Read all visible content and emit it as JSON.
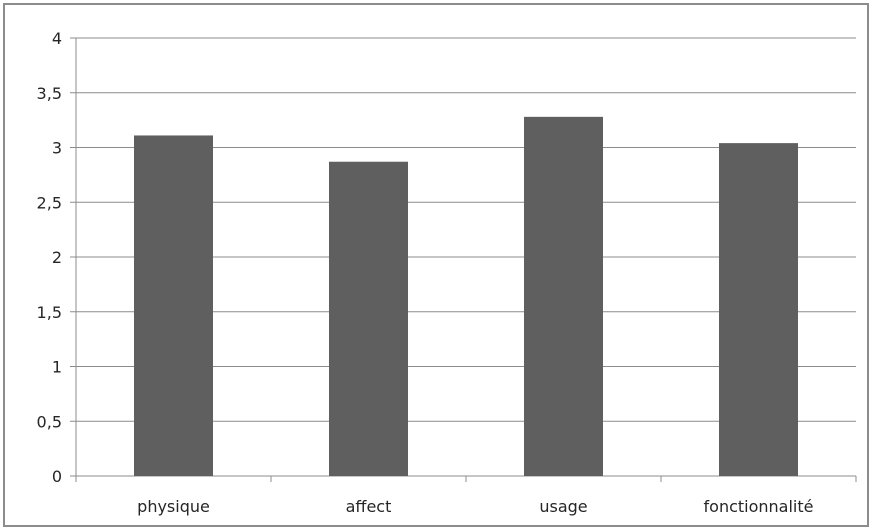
{
  "chart_data": {
    "type": "bar",
    "title": "",
    "xlabel": "",
    "ylabel": "",
    "categories": [
      "physique",
      "affect",
      "usage",
      "fonctionnalité"
    ],
    "values": [
      3.11,
      2.87,
      3.28,
      3.04
    ],
    "ylim": [
      0,
      4
    ],
    "yticks": [
      0,
      0.5,
      1,
      1.5,
      2,
      2.5,
      3,
      3.5,
      4
    ],
    "ytick_labels": [
      "0",
      "0,5",
      "1",
      "1,5",
      "2",
      "2,5",
      "3",
      "3,5",
      "4"
    ],
    "grid": true,
    "legend": "none",
    "bar_color": "#5f5f5f",
    "grid_color": "#8c8c8c",
    "axis_color": "#8c8c8c"
  }
}
